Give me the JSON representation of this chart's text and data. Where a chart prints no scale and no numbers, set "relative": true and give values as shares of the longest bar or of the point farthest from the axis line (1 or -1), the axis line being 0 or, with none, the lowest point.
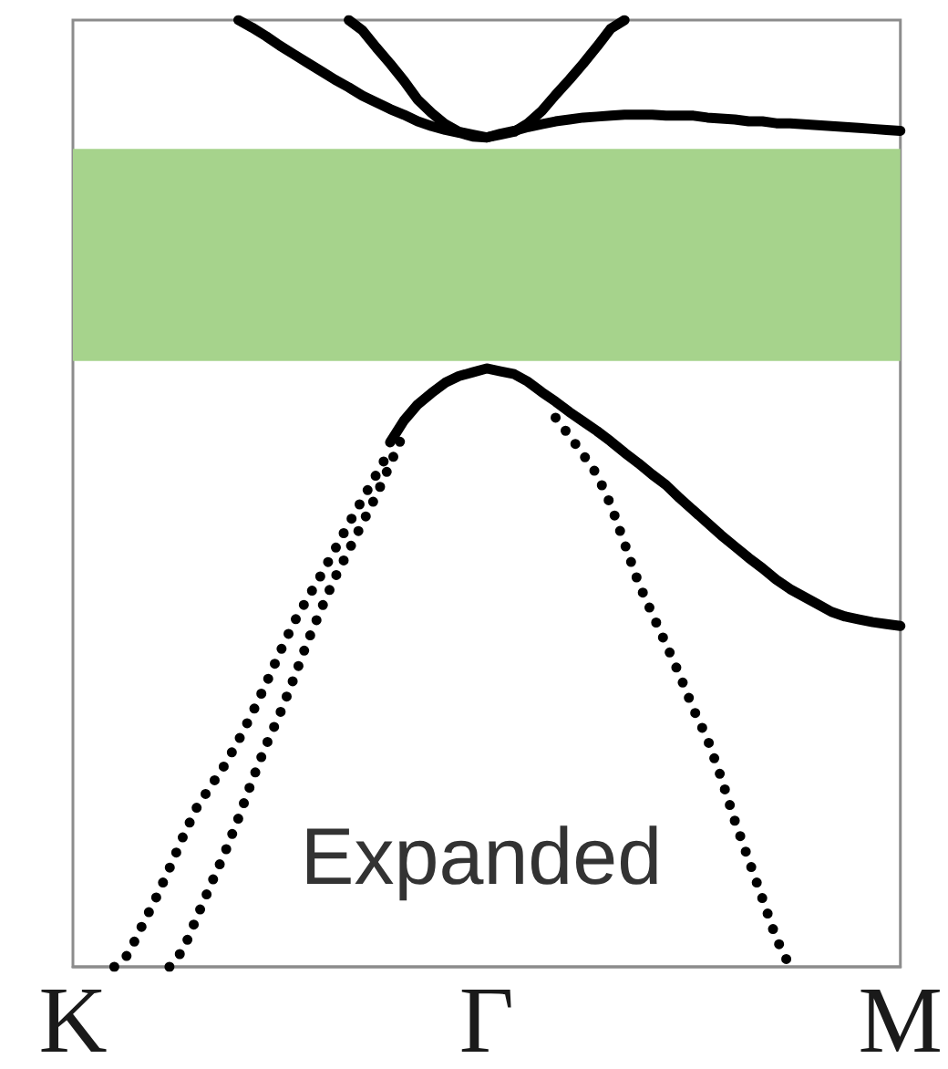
{
  "chart_data": {
    "type": "line",
    "relative": true,
    "tick_labels": "x",
    "marker": "none",
    "categories": [
      "K",
      null,
      null,
      null,
      null,
      null,
      null,
      null,
      null,
      null,
      null,
      null,
      null,
      null,
      null,
      null,
      null,
      null,
      null,
      null,
      null,
      null,
      null,
      null,
      null,
      null,
      null,
      null,
      null,
      null,
      "Γ",
      null,
      null,
      null,
      null,
      null,
      null,
      null,
      null,
      null,
      null,
      null,
      null,
      null,
      null,
      null,
      null,
      null,
      null,
      null,
      null,
      null,
      null,
      null,
      null,
      null,
      null,
      null,
      null,
      null,
      "M"
    ],
    "bands": [
      {
        "axis": "y",
        "from": 0.64,
        "to": 0.864,
        "color": "#a6d38c"
      }
    ],
    "annotations": [
      "Expanded"
    ],
    "series": [
      {
        "color": "#000000",
        "line_style": "solid",
        "values": [
          null,
          null,
          null,
          null,
          null,
          null,
          null,
          null,
          null,
          null,
          null,
          null,
          1.0,
          0.992,
          0.983,
          0.973,
          0.964,
          0.955,
          0.946,
          0.937,
          0.929,
          0.92,
          0.913,
          0.906,
          0.9,
          0.893,
          0.888,
          0.884,
          0.881,
          0.877,
          0.876,
          0.88,
          0.883,
          0.887,
          0.89,
          0.893,
          0.895,
          0.897,
          0.898,
          0.899,
          0.9,
          0.9,
          0.9,
          0.899,
          0.899,
          0.899,
          0.897,
          0.896,
          0.895,
          0.893,
          0.893,
          0.891,
          0.891,
          0.89,
          0.889,
          0.888,
          0.887,
          0.886,
          0.885,
          0.884,
          0.883
        ]
      },
      {
        "color": "#000000",
        "line_style": "solid",
        "values": [
          null,
          null,
          null,
          null,
          null,
          null,
          null,
          null,
          null,
          null,
          null,
          null,
          null,
          null,
          null,
          null,
          null,
          null,
          null,
          null,
          1.0,
          0.989,
          0.971,
          0.954,
          0.936,
          0.916,
          0.902,
          0.89,
          0.882,
          0.879,
          0.876,
          0.879,
          0.882,
          0.891,
          0.904,
          0.921,
          0.937,
          0.954,
          0.972,
          0.991,
          1.0,
          null,
          null,
          null,
          null,
          null,
          null,
          null,
          null,
          null,
          null,
          null,
          null,
          null,
          null,
          null,
          null,
          null,
          null,
          null,
          null
        ]
      },
      {
        "color": "#000000",
        "line_style": "solid",
        "values": [
          null,
          null,
          null,
          null,
          null,
          null,
          null,
          null,
          null,
          null,
          null,
          null,
          null,
          null,
          null,
          null,
          null,
          null,
          null,
          null,
          null,
          null,
          null,
          0.554,
          0.577,
          0.594,
          0.606,
          0.617,
          0.624,
          0.628,
          0.632,
          0.629,
          0.626,
          0.618,
          0.607,
          0.597,
          0.586,
          0.576,
          0.566,
          0.555,
          0.543,
          0.532,
          0.52,
          0.509,
          0.495,
          0.482,
          0.469,
          0.456,
          0.444,
          0.432,
          0.421,
          0.409,
          0.399,
          0.391,
          0.383,
          0.375,
          0.37,
          0.367,
          0.364,
          0.362,
          0.36
        ]
      },
      {
        "color": "#000000",
        "line_style": "dotted",
        "values": [
          null,
          null,
          null,
          0,
          0.013,
          0.043,
          0.072,
          0.104,
          0.138,
          0.169,
          0.191,
          0.213,
          0.239,
          0.268,
          0.299,
          0.332,
          0.363,
          0.389,
          0.414,
          0.441,
          0.468,
          0.494,
          0.52,
          0.546,
          null,
          null,
          null,
          null,
          null,
          null,
          null,
          null,
          null,
          null,
          null,
          null,
          null,
          null,
          null,
          null,
          null,
          null,
          null,
          null,
          null,
          null,
          null,
          null,
          null,
          null,
          null,
          null,
          null,
          null,
          null,
          null,
          null,
          null,
          null,
          null,
          null
        ]
      },
      {
        "color": "#000000",
        "line_style": "dotted",
        "values": [
          null,
          null,
          null,
          null,
          null,
          null,
          null,
          0,
          0.018,
          0.053,
          0.087,
          0.12,
          0.157,
          0.197,
          0.234,
          0.267,
          0.304,
          0.343,
          0.378,
          0.411,
          0.44,
          0.469,
          0.498,
          0.531,
          0.564,
          null,
          null,
          null,
          null,
          null,
          null,
          null,
          null,
          null,
          null,
          null,
          null,
          null,
          null,
          null,
          null,
          null,
          null,
          null,
          null,
          null,
          null,
          null,
          null,
          null,
          null,
          null,
          null,
          null,
          null,
          null,
          null,
          null,
          null,
          null,
          null
        ]
      },
      {
        "color": "#000000",
        "line_style": "dotted",
        "values": [
          null,
          null,
          null,
          null,
          null,
          null,
          null,
          null,
          null,
          null,
          null,
          null,
          null,
          null,
          null,
          null,
          null,
          null,
          null,
          null,
          null,
          null,
          null,
          null,
          null,
          null,
          null,
          null,
          null,
          null,
          null,
          null,
          null,
          null,
          null,
          0.58,
          0.561,
          0.541,
          0.52,
          0.488,
          0.447,
          0.406,
          0.373,
          0.341,
          0.308,
          0.272,
          0.241,
          0.2,
          0.154,
          0.113,
          0.072,
          0.03,
          0,
          null,
          null,
          null,
          null,
          null,
          null,
          null,
          null
        ]
      }
    ]
  }
}
